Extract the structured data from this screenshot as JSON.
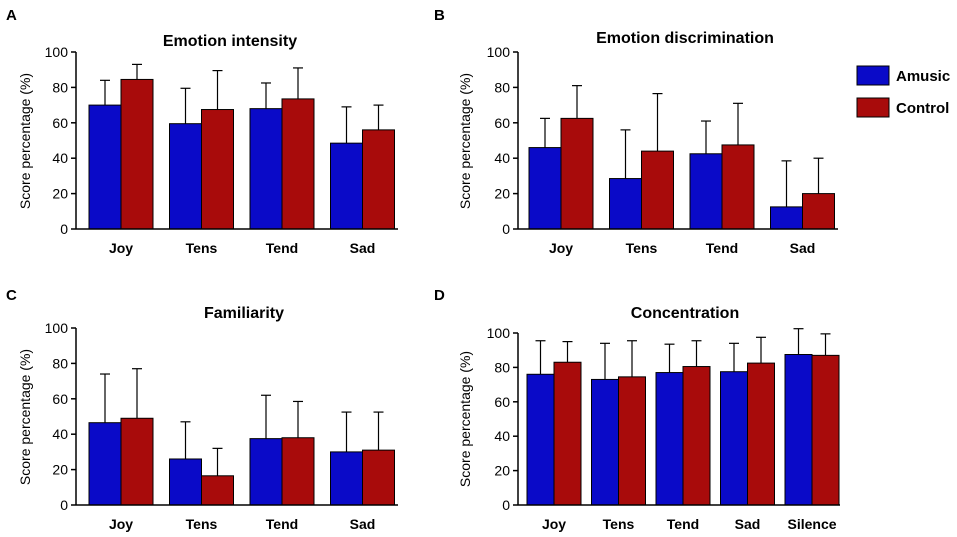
{
  "chart_data": [
    {
      "type": "bar",
      "panel": "A",
      "title": "Emotion intensity",
      "ylabel": "Score percentage (%)",
      "ylim": [
        0,
        100
      ],
      "yticks": [
        "0",
        "20",
        "40",
        "60",
        "80",
        "100"
      ],
      "categories": [
        "Joy",
        "Tens",
        "Tend",
        "Sad"
      ],
      "series": [
        {
          "name": "Amusic",
          "values": [
            70,
            59.5,
            68,
            48.5
          ],
          "errors": [
            14,
            20,
            14.5,
            20.5
          ]
        },
        {
          "name": "Control",
          "values": [
            84.5,
            67.5,
            73.5,
            56
          ],
          "errors": [
            8.5,
            22,
            17.5,
            14
          ]
        }
      ]
    },
    {
      "type": "bar",
      "panel": "B",
      "title": "Emotion discrimination",
      "ylabel": "Score percentage (%)",
      "ylim": [
        0,
        100
      ],
      "yticks": [
        "0",
        "20",
        "40",
        "60",
        "80",
        "100"
      ],
      "categories": [
        "Joy",
        "Tens",
        "Tend",
        "Sad"
      ],
      "series": [
        {
          "name": "Amusic",
          "values": [
            46,
            28.5,
            42.5,
            12.5
          ],
          "errors": [
            16.5,
            27.5,
            18.5,
            26
          ]
        },
        {
          "name": "Control",
          "values": [
            62.5,
            44,
            47.5,
            20
          ],
          "errors": [
            18.5,
            32.5,
            23.5,
            20
          ]
        }
      ]
    },
    {
      "type": "bar",
      "panel": "C",
      "title": "Familiarity",
      "ylabel": "Score percentage (%)",
      "ylim": [
        0,
        100
      ],
      "yticks": [
        "0",
        "20",
        "40",
        "60",
        "80",
        "100"
      ],
      "categories": [
        "Joy",
        "Tens",
        "Tend",
        "Sad"
      ],
      "series": [
        {
          "name": "Amusic",
          "values": [
            46.5,
            26,
            37.5,
            30
          ],
          "errors": [
            27.5,
            21,
            24.5,
            22.5
          ]
        },
        {
          "name": "Control",
          "values": [
            49,
            16.5,
            38,
            31
          ],
          "errors": [
            28,
            15.5,
            20.5,
            21.5
          ]
        }
      ]
    },
    {
      "type": "bar",
      "panel": "D",
      "title": "Concentration",
      "ylabel": "Score percentage (%)",
      "ylim": [
        0,
        100
      ],
      "yticks": [
        "0",
        "20",
        "40",
        "60",
        "80",
        "100"
      ],
      "categories": [
        "Joy",
        "Tens",
        "Tend",
        "Sad",
        "Silence"
      ],
      "series": [
        {
          "name": "Amusic",
          "values": [
            76,
            73,
            77,
            77.5,
            87.5
          ],
          "errors": [
            19.5,
            21,
            16.5,
            16.5,
            15
          ]
        },
        {
          "name": "Control",
          "values": [
            83,
            74.5,
            80.5,
            82.5,
            87
          ],
          "errors": [
            12,
            21,
            15,
            15,
            12.5
          ]
        }
      ]
    }
  ],
  "legend": {
    "items": [
      {
        "label": "Amusic",
        "color": "#0a0ac8"
      },
      {
        "label": "Control",
        "color": "#a80b0b"
      }
    ]
  },
  "colors": {
    "amusic": "#0a0ac8",
    "control": "#a80b0b"
  }
}
